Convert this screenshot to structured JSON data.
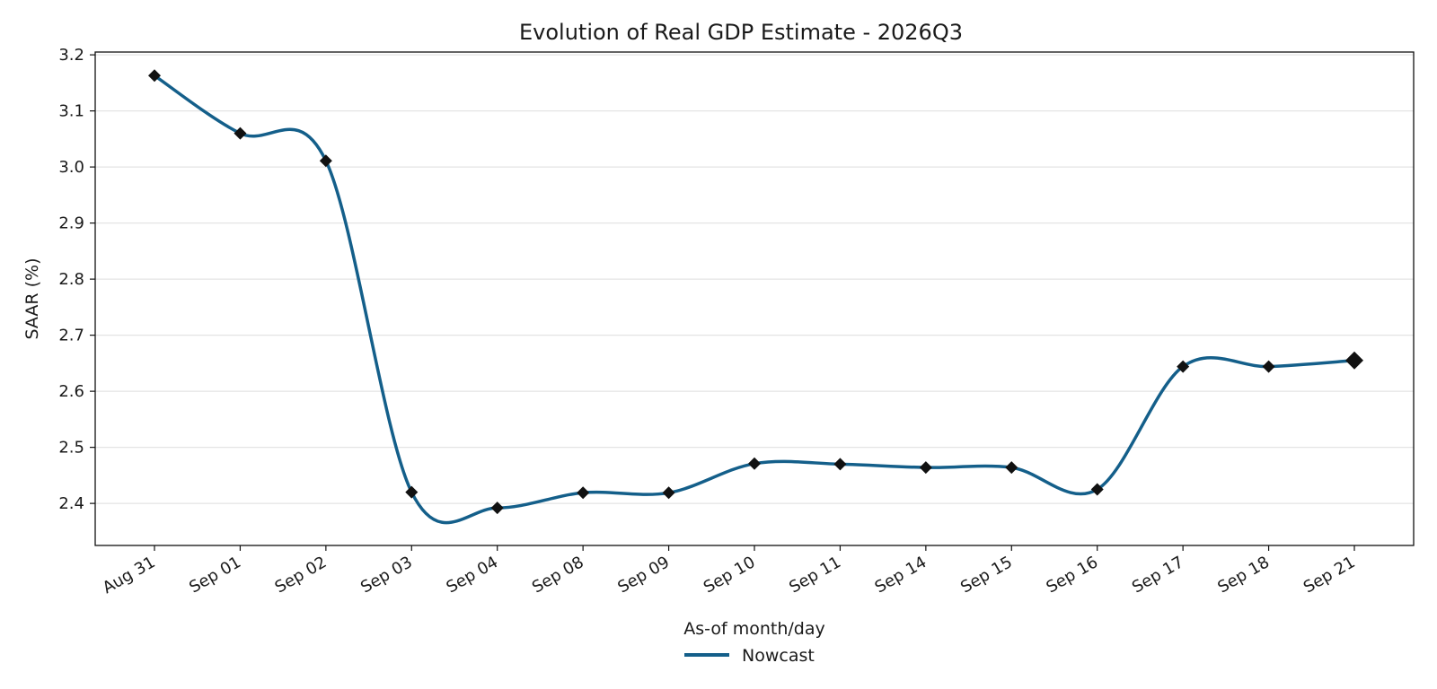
{
  "chart_data": {
    "type": "line",
    "title": "Evolution of Real GDP Estimate - 2026Q3",
    "xlabel": "As-of month/day",
    "ylabel": "SAAR (%)",
    "categories": [
      "Aug 31",
      "Sep 01",
      "Sep 02",
      "Sep 03",
      "Sep 04",
      "Sep 08",
      "Sep 09",
      "Sep 10",
      "Sep 11",
      "Sep 14",
      "Sep 15",
      "Sep 16",
      "Sep 17",
      "Sep 18",
      "Sep 21"
    ],
    "series": [
      {
        "name": "Nowcast",
        "color": "#145f8a",
        "values": [
          3.163,
          3.06,
          3.011,
          2.42,
          2.392,
          2.419,
          2.419,
          2.471,
          2.47,
          2.464,
          2.464,
          2.425,
          2.644,
          2.644,
          2.655
        ]
      }
    ],
    "ylim": [
      2.325,
      3.205
    ],
    "yticks": [
      2.4,
      2.5,
      2.6,
      2.7,
      2.8,
      2.9,
      3.0,
      3.1,
      3.2
    ],
    "grid": "y",
    "legend": "bottom-center",
    "marker_color": "#111111"
  }
}
